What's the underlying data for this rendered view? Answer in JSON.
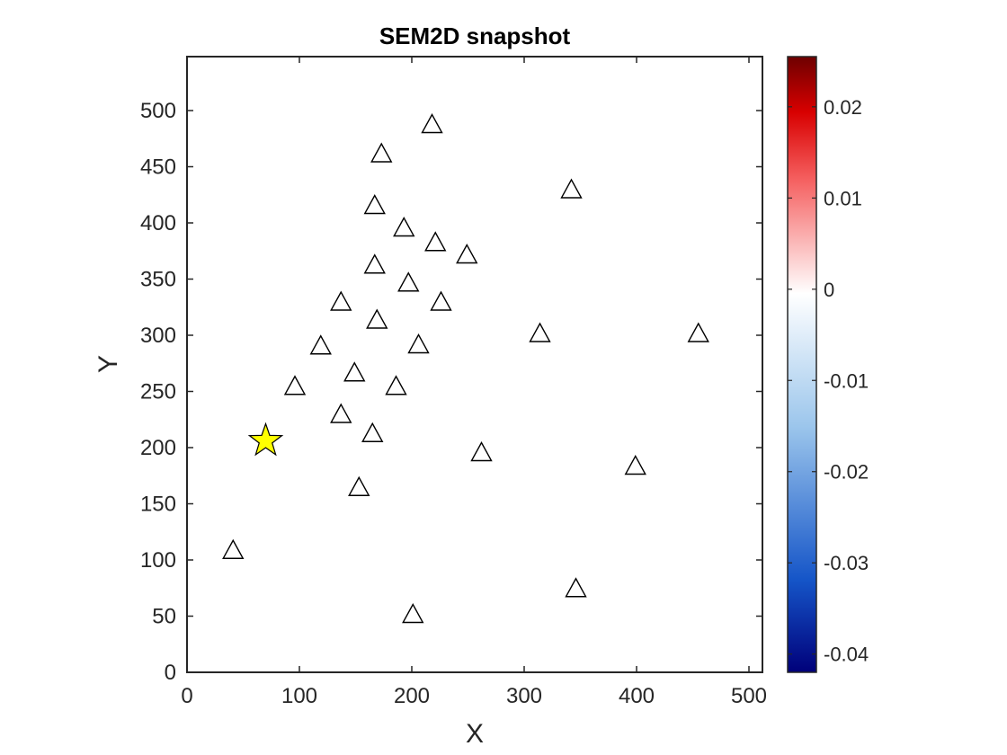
{
  "chart_data": {
    "type": "scatter",
    "title": "SEM2D snapshot",
    "xlabel": "X",
    "ylabel": "Y",
    "xlim": [
      0,
      512
    ],
    "ylim": [
      0,
      548
    ],
    "xticks": [
      0,
      100,
      200,
      300,
      400,
      500
    ],
    "yticks": [
      0,
      50,
      100,
      150,
      200,
      250,
      300,
      350,
      400,
      450,
      500
    ],
    "grid": false,
    "source": {
      "marker": "star",
      "color": "#ffff00",
      "x": 70,
      "y": 206
    },
    "stations": {
      "marker": "triangle",
      "fill": "#ffffff",
      "edge": "#000000",
      "points": [
        {
          "x": 218,
          "y": 488
        },
        {
          "x": 173,
          "y": 462
        },
        {
          "x": 342,
          "y": 430
        },
        {
          "x": 167,
          "y": 416
        },
        {
          "x": 193,
          "y": 396
        },
        {
          "x": 221,
          "y": 383
        },
        {
          "x": 249,
          "y": 372
        },
        {
          "x": 167,
          "y": 363
        },
        {
          "x": 197,
          "y": 347
        },
        {
          "x": 137,
          "y": 330
        },
        {
          "x": 226,
          "y": 330
        },
        {
          "x": 169,
          "y": 314
        },
        {
          "x": 314,
          "y": 302
        },
        {
          "x": 455,
          "y": 302
        },
        {
          "x": 119,
          "y": 291
        },
        {
          "x": 206,
          "y": 292
        },
        {
          "x": 149,
          "y": 267
        },
        {
          "x": 96,
          "y": 255
        },
        {
          "x": 186,
          "y": 255
        },
        {
          "x": 137,
          "y": 230
        },
        {
          "x": 165,
          "y": 213
        },
        {
          "x": 262,
          "y": 196
        },
        {
          "x": 399,
          "y": 184
        },
        {
          "x": 153,
          "y": 165
        },
        {
          "x": 41,
          "y": 109
        },
        {
          "x": 346,
          "y": 75
        },
        {
          "x": 201,
          "y": 52
        }
      ]
    },
    "colorbar": {
      "colormap": "red-white-blue",
      "clim": [
        -0.042,
        0.0255
      ],
      "ticks": [
        {
          "value": 0.02,
          "label": "0.02"
        },
        {
          "value": 0.01,
          "label": "0.01"
        },
        {
          "value": 0,
          "label": "0"
        },
        {
          "value": -0.01,
          "label": "-0.01"
        },
        {
          "value": -0.02,
          "label": "-0.02"
        },
        {
          "value": -0.03,
          "label": "-0.03"
        },
        {
          "value": -0.04,
          "label": "-0.04"
        }
      ]
    }
  }
}
